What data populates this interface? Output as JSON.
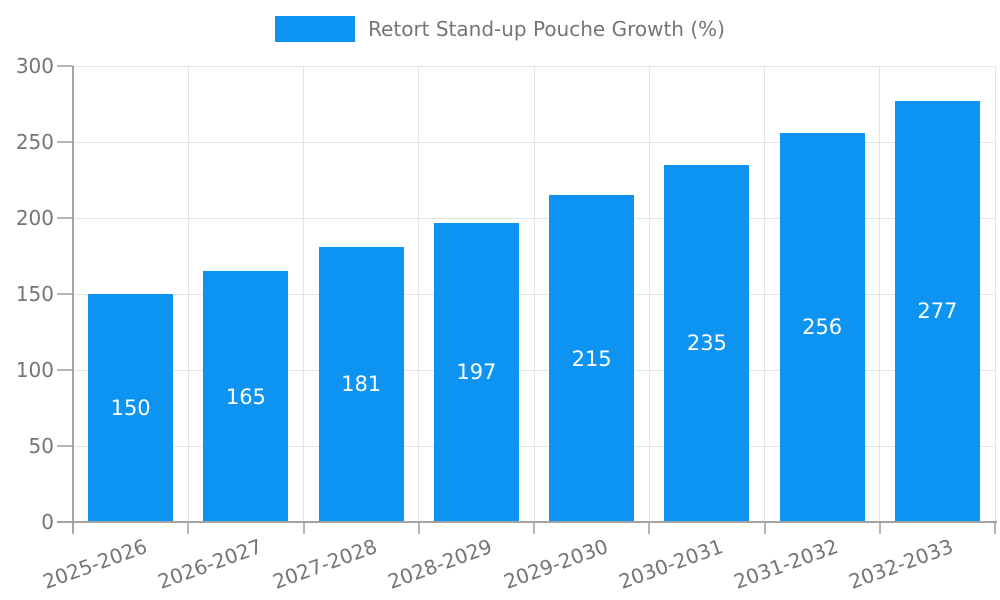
{
  "legend": {
    "label": "Retort Stand-up Pouche Growth (%)"
  },
  "colors": {
    "bar": "#0d94f2",
    "axis": "#a3a3a3",
    "tick": "#b5b5b5",
    "grid": "#e4e4e4",
    "tick_label": "#757575",
    "value_label": "#ffffff",
    "background": "#ffffff"
  },
  "chart_data": {
    "type": "bar",
    "title": "",
    "xlabel": "",
    "ylabel": "",
    "categories": [
      "2025-2026",
      "2026-2027",
      "2027-2028",
      "2028-2029",
      "2029-2030",
      "2030-2031",
      "2031-2032",
      "2032-2033"
    ],
    "series": [
      {
        "name": "Retort Stand-up Pouche Growth (%)",
        "values": [
          150,
          165,
          181,
          197,
          215,
          235,
          256,
          277
        ]
      }
    ],
    "value_labels": [
      "150",
      "165",
      "181",
      "197",
      "215",
      "235",
      "256",
      "277"
    ],
    "ylim": [
      0,
      300
    ],
    "yticks": [
      0,
      50,
      100,
      150,
      200,
      250,
      300
    ],
    "grid": true,
    "legend_position": "top-center",
    "value_label_position": "inside-center",
    "x_label_rotation_deg": -20
  }
}
